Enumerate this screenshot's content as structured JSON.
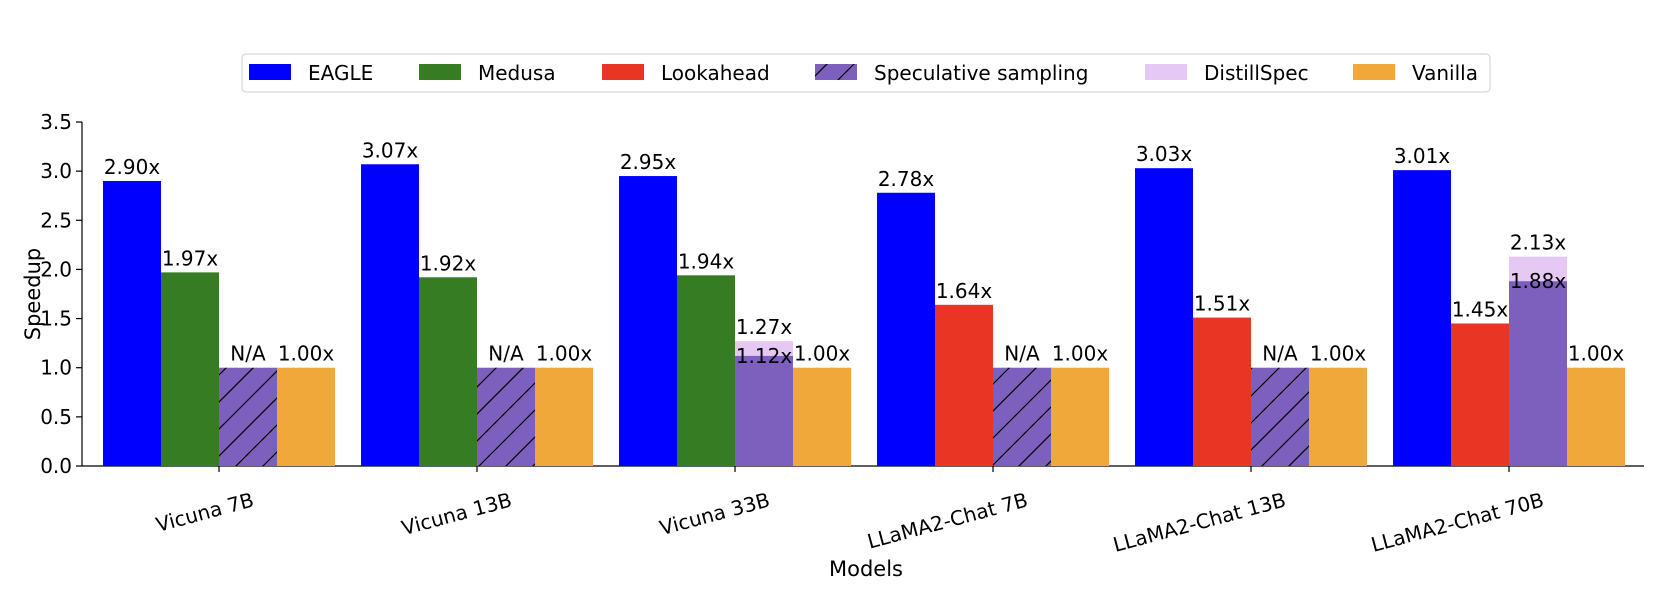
{
  "chart_data": {
    "type": "bar",
    "xlabel": "Models",
    "ylabel": "Speedup",
    "ylim": [
      0,
      3.5
    ],
    "yticks": [
      "0.0",
      "0.5",
      "1.0",
      "1.5",
      "2.0",
      "2.5",
      "3.0",
      "3.5"
    ],
    "legend_position": "top",
    "legend": [
      {
        "name": "EAGLE",
        "color": "#0000ff",
        "hatch": false
      },
      {
        "name": "Medusa",
        "color": "#367c22",
        "hatch": false
      },
      {
        "name": "Lookahead",
        "color": "#e83524",
        "hatch": false
      },
      {
        "name": "Speculative sampling",
        "color": "#7d60be",
        "hatch": true
      },
      {
        "name": "DistillSpec",
        "color": "#e6c8f5",
        "hatch": false
      },
      {
        "name": "Vanilla",
        "color": "#f0a83a",
        "hatch": false
      }
    ],
    "groups": [
      {
        "category": "Vicuna 7B",
        "bars": [
          {
            "series": "EAGLE",
            "value": 2.9,
            "label": "2.90x",
            "color": "#0000ff"
          },
          {
            "series": "Medusa",
            "value": 1.97,
            "label": "1.97x",
            "color": "#367c22"
          },
          {
            "series": "Speculative sampling",
            "value": 1.0,
            "label": "N/A",
            "color": "#7d60be",
            "hatch": true
          },
          {
            "series": "Vanilla",
            "value": 1.0,
            "label": "1.00x",
            "color": "#f0a83a"
          }
        ]
      },
      {
        "category": "Vicuna 13B",
        "bars": [
          {
            "series": "EAGLE",
            "value": 3.07,
            "label": "3.07x",
            "color": "#0000ff"
          },
          {
            "series": "Medusa",
            "value": 1.92,
            "label": "1.92x",
            "color": "#367c22"
          },
          {
            "series": "Speculative sampling",
            "value": 1.0,
            "label": "N/A",
            "color": "#7d60be",
            "hatch": true
          },
          {
            "series": "Vanilla",
            "value": 1.0,
            "label": "1.00x",
            "color": "#f0a83a"
          }
        ]
      },
      {
        "category": "Vicuna 33B",
        "bars": [
          {
            "series": "EAGLE",
            "value": 2.95,
            "label": "2.95x",
            "color": "#0000ff"
          },
          {
            "series": "Medusa",
            "value": 1.94,
            "label": "1.94x",
            "color": "#367c22"
          },
          {
            "series": "DistillSpec",
            "value": 1.27,
            "label": "1.27x",
            "color": "#e6c8f5",
            "overlay_label": "1.12x",
            "overlay_value": 1.12,
            "overlay_series": "Speculative sampling",
            "overlay_color": "#7d60be"
          },
          {
            "series": "Vanilla",
            "value": 1.0,
            "label": "1.00x",
            "color": "#f0a83a"
          }
        ]
      },
      {
        "category": "LLaMA2-Chat 7B",
        "bars": [
          {
            "series": "EAGLE",
            "value": 2.78,
            "label": "2.78x",
            "color": "#0000ff"
          },
          {
            "series": "Lookahead",
            "value": 1.64,
            "label": "1.64x",
            "color": "#e83524"
          },
          {
            "series": "Speculative sampling",
            "value": 1.0,
            "label": "N/A",
            "color": "#7d60be",
            "hatch": true
          },
          {
            "series": "Vanilla",
            "value": 1.0,
            "label": "1.00x",
            "color": "#f0a83a"
          }
        ]
      },
      {
        "category": "LLaMA2-Chat 13B",
        "bars": [
          {
            "series": "EAGLE",
            "value": 3.03,
            "label": "3.03x",
            "color": "#0000ff"
          },
          {
            "series": "Lookahead",
            "value": 1.51,
            "label": "1.51x",
            "color": "#e83524"
          },
          {
            "series": "Speculative sampling",
            "value": 1.0,
            "label": "N/A",
            "color": "#7d60be",
            "hatch": true
          },
          {
            "series": "Vanilla",
            "value": 1.0,
            "label": "1.00x",
            "color": "#f0a83a"
          }
        ]
      },
      {
        "category": "LLaMA2-Chat 70B",
        "bars": [
          {
            "series": "EAGLE",
            "value": 3.01,
            "label": "3.01x",
            "color": "#0000ff"
          },
          {
            "series": "Lookahead",
            "value": 1.45,
            "label": "1.45x",
            "color": "#e83524"
          },
          {
            "series": "DistillSpec",
            "value": 2.13,
            "label": "2.13x",
            "color": "#e6c8f5",
            "overlay_label": "1.88x",
            "overlay_value": 1.88,
            "overlay_series": "Speculative sampling",
            "overlay_color": "#7d60be"
          },
          {
            "series": "Vanilla",
            "value": 1.0,
            "label": "1.00x",
            "color": "#f0a83a"
          }
        ]
      }
    ]
  }
}
